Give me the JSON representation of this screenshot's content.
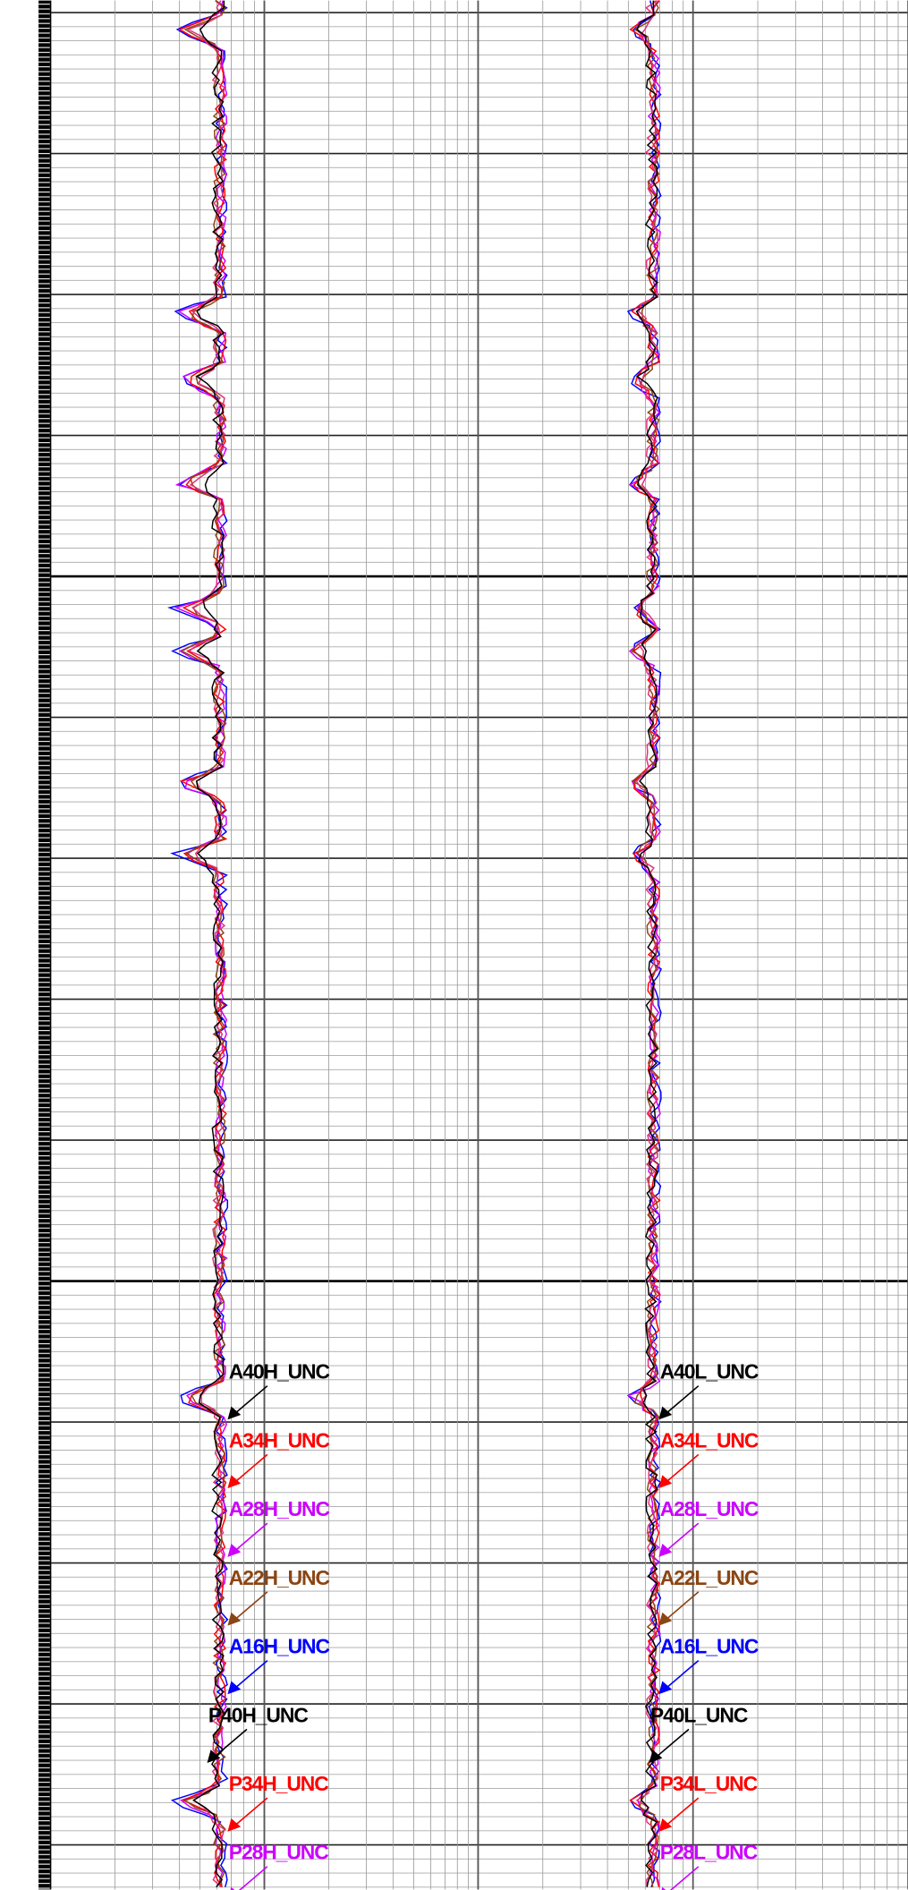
{
  "tracks": [
    {
      "labels": [
        {
          "text": "A40H_UNC",
          "color": "#000000"
        },
        {
          "text": "A34H_UNC",
          "color": "#ff0000"
        },
        {
          "text": "A28H_UNC",
          "color": "#cc00ff"
        },
        {
          "text": "A22H_UNC",
          "color": "#8b4513"
        },
        {
          "text": "A16H_UNC",
          "color": "#0000ff"
        },
        {
          "text": "P40H_UNC",
          "color": "#000000"
        },
        {
          "text": "P34H_UNC",
          "color": "#ff0000"
        },
        {
          "text": "P28H_UNC",
          "color": "#cc00ff"
        }
      ]
    },
    {
      "labels": [
        {
          "text": "A40L_UNC",
          "color": "#000000"
        },
        {
          "text": "A34L_UNC",
          "color": "#ff0000"
        },
        {
          "text": "A28L_UNC",
          "color": "#cc00ff"
        },
        {
          "text": "A22L_UNC",
          "color": "#8b4513"
        },
        {
          "text": "A16L_UNC",
          "color": "#0000ff"
        },
        {
          "text": "P40L_UNC",
          "color": "#000000"
        },
        {
          "text": "P34L_UNC",
          "color": "#ff0000"
        },
        {
          "text": "P28L_UNC",
          "color": "#cc00ff"
        }
      ]
    }
  ]
}
